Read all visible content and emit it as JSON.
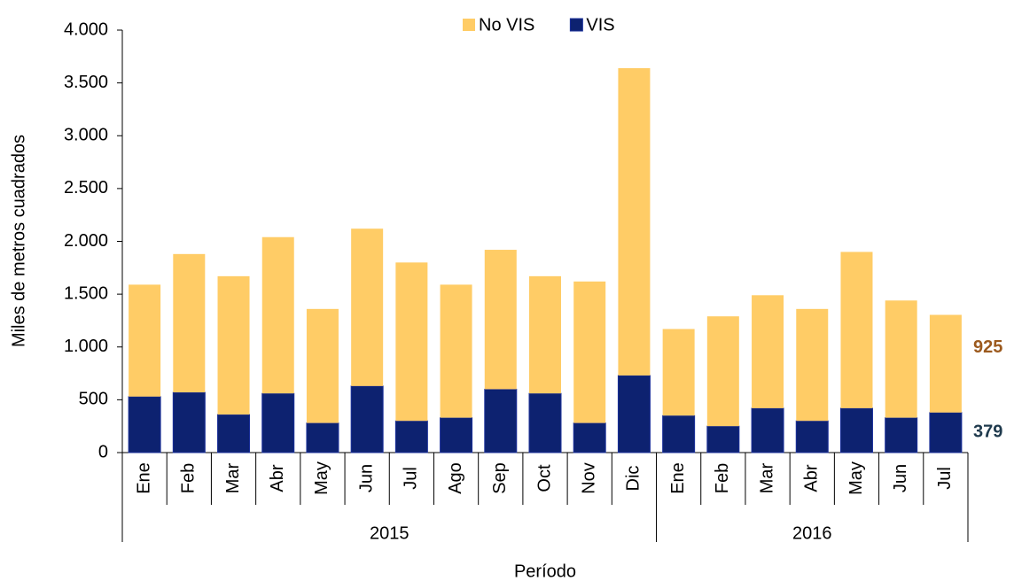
{
  "chart_data": {
    "type": "stacked_bar",
    "y_label": "Miles de metros cuadrados",
    "x_label": "Período",
    "categories": [
      "Ene",
      "Feb",
      "Mar",
      "Abr",
      "May",
      "Jun",
      "Jul",
      "Ago",
      "Sep",
      "Oct",
      "Nov",
      "Dic",
      "Ene",
      "Feb",
      "Mar",
      "Abr",
      "May",
      "Jun",
      "Jul"
    ],
    "category_groups": [
      "2015",
      "2015",
      "2015",
      "2015",
      "2015",
      "2015",
      "2015",
      "2015",
      "2015",
      "2015",
      "2015",
      "2015",
      "2016",
      "2016",
      "2016",
      "2016",
      "2016",
      "2016",
      "2016"
    ],
    "series": [
      {
        "name": "VIS",
        "color": "#0d2270",
        "label_color": "#1f3a4d",
        "label_last": true,
        "values": [
          530,
          570,
          360,
          560,
          280,
          630,
          300,
          330,
          600,
          560,
          280,
          730,
          350,
          250,
          420,
          300,
          420,
          330,
          379
        ]
      },
      {
        "name": "No VIS",
        "color": "#ffcc66",
        "label_color": "#9c5a1e",
        "label_last": true,
        "values": [
          1060,
          1310,
          1310,
          1480,
          1080,
          1490,
          1500,
          1260,
          1320,
          1110,
          1340,
          2910,
          820,
          1040,
          1070,
          1060,
          1480,
          1110,
          925
        ]
      }
    ],
    "legend_order": [
      1,
      0
    ],
    "ylim": [
      0,
      4000
    ],
    "yticks": [
      0,
      500,
      {
        "value": 1000,
        "label": "1.000"
      },
      {
        "value": 1500,
        "label": "1.500"
      },
      {
        "value": 2000,
        "label": "2.000"
      },
      {
        "value": 2500,
        "label": "2.500"
      },
      {
        "value": 3000,
        "label": "3.000"
      },
      {
        "value": 3500,
        "label": "3.500"
      },
      {
        "value": 4000,
        "label": "4.000"
      }
    ],
    "grid": false
  }
}
